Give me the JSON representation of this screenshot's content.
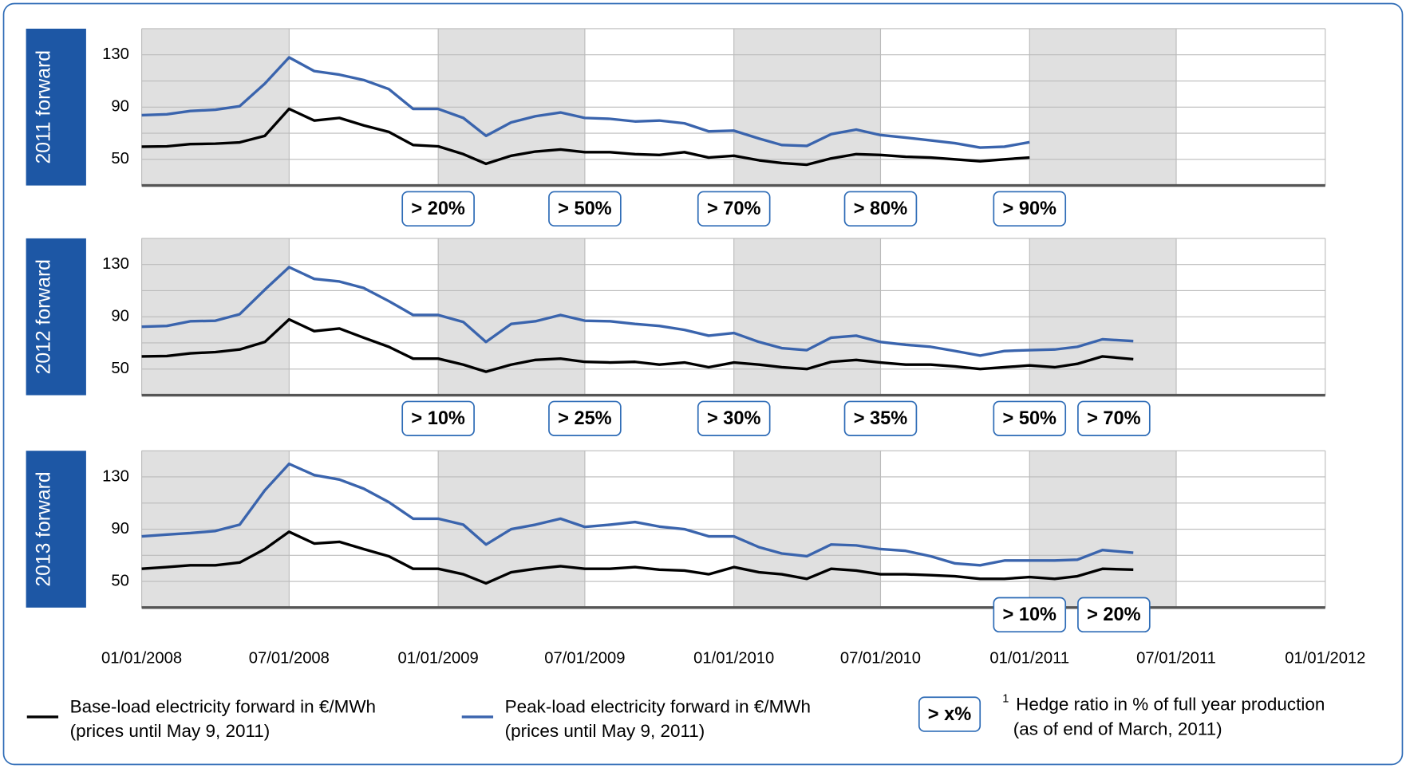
{
  "chart_data": [
    {
      "type": "line",
      "title": "2011 forward",
      "x": [
        "01/01/2008",
        "02/01/2008",
        "03/01/2008",
        "04/01/2008",
        "05/01/2008",
        "06/01/2008",
        "07/01/2008",
        "08/01/2008",
        "09/01/2008",
        "10/01/2008",
        "11/01/2008",
        "12/01/2008",
        "01/01/2009",
        "02/01/2009",
        "03/01/2009",
        "04/01/2009",
        "05/01/2009",
        "06/01/2009",
        "07/01/2009",
        "08/01/2009",
        "09/01/2009",
        "10/01/2009",
        "11/01/2009",
        "12/01/2009",
        "01/01/2010",
        "02/01/2010",
        "03/01/2010",
        "04/01/2010",
        "05/01/2010",
        "06/01/2010",
        "07/01/2010",
        "08/01/2010",
        "09/01/2010",
        "10/01/2010",
        "11/01/2010",
        "12/01/2010",
        "01/01/2011"
      ],
      "series": [
        {
          "color": "#000000",
          "values": [
            59.7,
            60,
            61.7,
            62,
            63,
            68,
            88.6,
            79.7,
            81.7,
            76,
            71,
            61,
            60,
            54,
            46.6,
            52.8,
            56,
            57.6,
            55.5,
            55.5,
            54,
            53.4,
            55.5,
            51.4,
            52.8,
            49.3,
            47.2,
            45.9,
            50.7,
            54,
            53.4,
            52,
            51.4,
            50,
            48.6,
            50,
            51.4
          ]
        },
        {
          "color": "#3a64ad",
          "values": [
            83.8,
            84.5,
            87,
            88,
            90.7,
            108,
            128,
            117.6,
            114.8,
            110.7,
            103.8,
            88.6,
            88.6,
            81.7,
            68,
            78.3,
            83,
            85.9,
            81.7,
            81,
            79,
            79.7,
            77.6,
            71.4,
            72,
            65.9,
            61,
            60.3,
            69.3,
            72.8,
            68.6,
            66.6,
            64.5,
            62.4,
            59,
            59.7,
            63.1
          ]
        }
      ],
      "xlim": [
        "01/01/2008",
        "01/01/2012"
      ],
      "xticks": [
        "01/01/2008",
        "07/01/2008",
        "01/01/2009",
        "07/01/2009",
        "01/01/2010",
        "07/01/2010",
        "01/01/2011",
        "07/01/2011",
        "01/01/2012"
      ],
      "ylim": [
        30,
        150
      ],
      "yticks": [
        50,
        90,
        130
      ],
      "yminor": [
        70,
        110
      ],
      "annotations": [
        {
          "text": "> 20%",
          "x": "01/01/2009"
        },
        {
          "text": "> 50%",
          "x": "07/01/2009"
        },
        {
          "text": "> 70%",
          "x": "01/01/2010"
        },
        {
          "text": "> 80%",
          "x": "07/01/2010"
        },
        {
          "text": "> 90%",
          "x": "01/01/2011"
        }
      ]
    },
    {
      "type": "line",
      "title": "2012 forward",
      "x": [
        "01/01/2008",
        "02/01/2008",
        "03/01/2008",
        "04/01/2008",
        "05/01/2008",
        "06/01/2008",
        "07/01/2008",
        "08/01/2008",
        "09/01/2008",
        "10/01/2008",
        "11/01/2008",
        "12/01/2008",
        "01/01/2009",
        "02/01/2009",
        "03/01/2009",
        "04/01/2009",
        "05/01/2009",
        "06/01/2009",
        "07/01/2009",
        "08/01/2009",
        "09/01/2009",
        "10/01/2009",
        "11/01/2009",
        "12/01/2009",
        "01/01/2010",
        "02/01/2010",
        "03/01/2010",
        "04/01/2010",
        "05/01/2010",
        "06/01/2010",
        "07/01/2010",
        "08/01/2010",
        "09/01/2010",
        "10/01/2010",
        "11/01/2010",
        "12/01/2010",
        "01/01/2011",
        "02/01/2011",
        "03/01/2011",
        "04/01/2011",
        "05/09/2011"
      ],
      "series": [
        {
          "color": "#000000",
          "values": [
            59.7,
            60,
            62,
            63,
            65,
            70.7,
            88,
            79,
            81,
            74,
            67,
            58,
            58,
            53.4,
            48,
            53.4,
            57,
            58,
            55.5,
            55,
            55.5,
            53.4,
            55,
            51.4,
            55,
            53.4,
            51.4,
            50,
            55.5,
            57,
            55,
            53.4,
            53.4,
            52,
            50,
            51.4,
            52.8,
            51.4,
            54,
            59.7,
            57.6
          ]
        },
        {
          "color": "#3a64ad",
          "values": [
            82.4,
            83,
            86.6,
            87,
            92,
            110.7,
            128,
            119,
            117,
            112,
            102,
            91.4,
            91.4,
            86,
            70.7,
            84.5,
            86.6,
            91.4,
            87,
            86.6,
            84.5,
            83,
            80,
            75.5,
            77.6,
            70.7,
            66,
            64.5,
            74,
            75.5,
            70.7,
            68.6,
            67,
            63.8,
            60.3,
            63.8,
            64.5,
            65,
            67,
            72.8,
            71.4
          ]
        }
      ],
      "xlim": [
        "01/01/2008",
        "01/01/2012"
      ],
      "xticks": [
        "01/01/2008",
        "07/01/2008",
        "01/01/2009",
        "07/01/2009",
        "01/01/2010",
        "07/01/2010",
        "01/01/2011",
        "07/01/2011",
        "01/01/2012"
      ],
      "ylim": [
        30,
        150
      ],
      "yticks": [
        50,
        90,
        130
      ],
      "yminor": [
        70,
        110
      ],
      "annotations": [
        {
          "text": "> 10%",
          "x": "01/01/2009"
        },
        {
          "text": "> 25%",
          "x": "07/01/2009"
        },
        {
          "text": "> 30%",
          "x": "01/01/2010"
        },
        {
          "text": "> 35%",
          "x": "07/01/2010"
        },
        {
          "text": "> 50%",
          "x": "01/01/2011"
        },
        {
          "text": "> 70%",
          "x": "04/15/2011"
        }
      ]
    },
    {
      "type": "line",
      "title": "2013 forward",
      "x": [
        "01/01/2008",
        "02/01/2008",
        "03/01/2008",
        "04/01/2008",
        "05/01/2008",
        "06/01/2008",
        "07/01/2008",
        "08/01/2008",
        "09/01/2008",
        "10/01/2008",
        "11/01/2008",
        "12/01/2008",
        "01/01/2009",
        "02/01/2009",
        "03/01/2009",
        "04/01/2009",
        "05/01/2009",
        "06/01/2009",
        "07/01/2009",
        "08/01/2009",
        "09/01/2009",
        "10/01/2009",
        "11/01/2009",
        "12/01/2009",
        "01/01/2010",
        "02/01/2010",
        "03/01/2010",
        "04/01/2010",
        "05/01/2010",
        "06/01/2010",
        "07/01/2010",
        "08/01/2010",
        "09/01/2010",
        "10/01/2010",
        "11/01/2010",
        "12/01/2010",
        "01/01/2011",
        "02/01/2011",
        "03/01/2011",
        "04/01/2011",
        "05/09/2011"
      ],
      "series": [
        {
          "color": "#000000",
          "values": [
            59.7,
            61,
            62.4,
            62.4,
            64.5,
            74.8,
            88,
            79,
            80.3,
            74.8,
            69.3,
            59.7,
            59.7,
            55.5,
            48.6,
            57,
            59.7,
            61.7,
            59.7,
            59.7,
            61,
            59,
            58.3,
            55.5,
            61,
            57,
            55.5,
            52,
            59.7,
            58.3,
            55.5,
            55.5,
            54.8,
            54,
            52,
            52,
            53.4,
            52,
            54,
            59.7,
            59
          ]
        },
        {
          "color": "#3a64ad",
          "values": [
            84.5,
            85.9,
            87,
            88.6,
            93.4,
            119.7,
            140,
            131.4,
            128,
            121,
            110.7,
            98,
            98,
            93.4,
            78.3,
            90,
            93.4,
            98,
            91.7,
            93.4,
            95.5,
            92,
            90,
            84.5,
            84.5,
            76.2,
            71.4,
            69.3,
            78.3,
            77.6,
            74.8,
            73.4,
            69.3,
            63.8,
            62.4,
            66,
            66,
            66,
            66.6,
            74,
            72
          ]
        }
      ],
      "xlim": [
        "01/01/2008",
        "01/01/2012"
      ],
      "xticks": [
        "01/01/2008",
        "07/01/2008",
        "01/01/2009",
        "07/01/2009",
        "01/01/2010",
        "07/01/2010",
        "01/01/2011",
        "07/01/2011",
        "01/01/2012"
      ],
      "ylim": [
        30,
        150
      ],
      "yticks": [
        50,
        90,
        130
      ],
      "yminor": [
        70,
        110
      ],
      "annotations": [
        {
          "text": "> 10%",
          "x": "01/01/2011"
        },
        {
          "text": "> 20%",
          "x": "04/15/2011"
        }
      ]
    }
  ],
  "legend": [
    {
      "name": "Base-load electricity forward in €/MWh",
      "note": "(prices until May 9, 2011)"
    },
    {
      "name": "Peak-load electricity forward in €/MWh",
      "note": "(prices until May 9, 2011)"
    }
  ],
  "footnote": {
    "box": "> x%",
    "mark": "1",
    "lines": [
      "Hedge ratio in % of full year production",
      "(as of end of March, 2011)"
    ]
  }
}
